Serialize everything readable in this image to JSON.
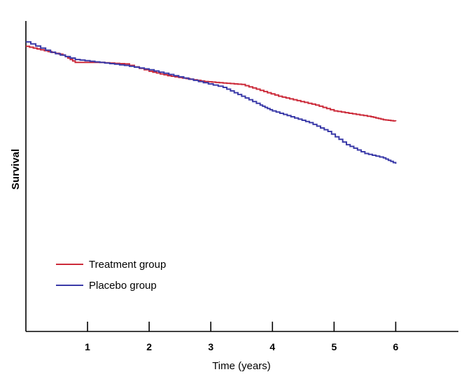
{
  "chart_data": {
    "type": "line",
    "title": "",
    "xlabel": "Time (years)",
    "ylabel": "Survival",
    "xlim": [
      0,
      7
    ],
    "ylim": [
      0,
      1
    ],
    "xticks": [
      "1",
      "2",
      "3",
      "4",
      "5",
      "6"
    ],
    "xtick_values": [
      1,
      2,
      3,
      4,
      5,
      6
    ],
    "grid": false,
    "legend_position": "bottom-left",
    "series": [
      {
        "name": "Treatment group",
        "color": "#cc2b3a",
        "x": [
          0,
          0.3,
          0.6,
          0.8,
          1.2,
          1.6,
          2.0,
          2.3,
          2.6,
          2.9,
          3.2,
          3.5,
          3.8,
          4.1,
          4.4,
          4.7,
          5.0,
          5.3,
          5.6,
          5.8,
          6.0
        ],
        "y": [
          0.99,
          0.975,
          0.96,
          0.935,
          0.935,
          0.93,
          0.905,
          0.89,
          0.88,
          0.87,
          0.865,
          0.86,
          0.84,
          0.82,
          0.805,
          0.79,
          0.77,
          0.76,
          0.75,
          0.74,
          0.735
        ]
      },
      {
        "name": "Placebo group",
        "color": "#3a3aa8",
        "x": [
          0,
          0.4,
          0.8,
          1.2,
          1.6,
          2.0,
          2.4,
          2.8,
          3.2,
          3.5,
          3.8,
          4.0,
          4.3,
          4.6,
          4.9,
          5.2,
          5.5,
          5.8,
          6.0
        ],
        "y": [
          1.005,
          0.97,
          0.945,
          0.935,
          0.925,
          0.91,
          0.89,
          0.87,
          0.85,
          0.82,
          0.79,
          0.77,
          0.75,
          0.73,
          0.7,
          0.655,
          0.625,
          0.61,
          0.59
        ]
      }
    ]
  }
}
